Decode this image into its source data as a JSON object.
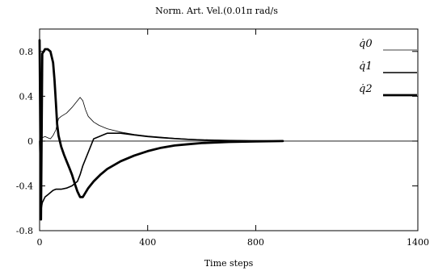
{
  "chart_data": {
    "type": "line",
    "title": "Norm. Art. Vel.(0.01π rad/s",
    "xlabel": "Time steps",
    "ylabel": "",
    "xlim": [
      0,
      1400
    ],
    "ylim": [
      -0.8,
      1.0
    ],
    "xticks": [
      0,
      400,
      800,
      1400
    ],
    "xtick_labels": [
      "0",
      "400",
      "800",
      "1400"
    ],
    "yticks": [
      -0.8,
      -0.4,
      0,
      0.4,
      0.8
    ],
    "ytick_labels": [
      "-0.8",
      "-0.4",
      "0",
      "0.4",
      "0.8"
    ],
    "zero_line": true,
    "grid": false,
    "legend_position": "top-right",
    "series": [
      {
        "name": "q̇0",
        "line_width": "thin",
        "x": [
          0,
          10,
          20,
          30,
          40,
          50,
          60,
          70,
          80,
          100,
          120,
          140,
          150,
          160,
          170,
          180,
          200,
          220,
          250,
          300,
          350,
          400,
          450,
          500,
          550,
          600,
          700,
          800,
          900
        ],
        "y": [
          0,
          0.03,
          0.04,
          0.03,
          0.02,
          0.05,
          0.1,
          0.2,
          0.22,
          0.25,
          0.3,
          0.36,
          0.39,
          0.36,
          0.28,
          0.22,
          0.17,
          0.14,
          0.11,
          0.08,
          0.06,
          0.045,
          0.035,
          0.025,
          0.018,
          0.012,
          0.006,
          0.003,
          0.0
        ]
      },
      {
        "name": "q̇1",
        "line_width": "medium",
        "x": [
          0,
          5,
          10,
          20,
          30,
          40,
          50,
          60,
          70,
          80,
          100,
          120,
          140,
          150,
          160,
          180,
          200,
          250,
          300,
          350,
          400,
          450,
          500,
          550,
          600,
          700,
          800,
          900
        ],
        "y": [
          0,
          -0.62,
          -0.55,
          -0.5,
          -0.48,
          -0.46,
          -0.44,
          -0.43,
          -0.43,
          -0.43,
          -0.42,
          -0.4,
          -0.36,
          -0.3,
          -0.22,
          -0.1,
          0.02,
          0.07,
          0.07,
          0.055,
          0.04,
          0.03,
          0.022,
          0.015,
          0.01,
          0.005,
          0.002,
          0.0
        ]
      },
      {
        "name": "q̇2",
        "line_width": "thick",
        "x": [
          0,
          5,
          10,
          15,
          20,
          30,
          40,
          50,
          55,
          60,
          65,
          70,
          80,
          90,
          100,
          110,
          120,
          130,
          140,
          150,
          160,
          170,
          180,
          200,
          225,
          250,
          300,
          350,
          400,
          450,
          500,
          550,
          600,
          700,
          800,
          900
        ],
        "y": [
          0.9,
          -0.7,
          0.78,
          0.8,
          0.82,
          0.82,
          0.8,
          0.7,
          0.55,
          0.35,
          0.15,
          0.05,
          -0.05,
          -0.12,
          -0.18,
          -0.24,
          -0.3,
          -0.38,
          -0.45,
          -0.5,
          -0.5,
          -0.46,
          -0.42,
          -0.36,
          -0.3,
          -0.25,
          -0.18,
          -0.13,
          -0.09,
          -0.06,
          -0.04,
          -0.028,
          -0.018,
          -0.008,
          -0.003,
          0.0
        ]
      }
    ]
  }
}
